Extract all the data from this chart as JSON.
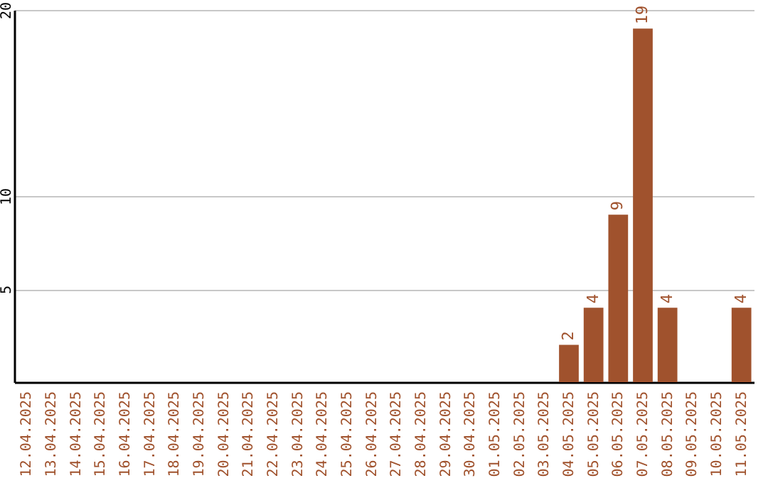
{
  "chart_data": {
    "type": "bar",
    "categories": [
      "12.04.2025",
      "13.04.2025",
      "14.04.2025",
      "15.04.2025",
      "16.04.2025",
      "17.04.2025",
      "18.04.2025",
      "19.04.2025",
      "20.04.2025",
      "21.04.2025",
      "22.04.2025",
      "23.04.2025",
      "24.04.2025",
      "25.04.2025",
      "26.04.2025",
      "27.04.2025",
      "28.04.2025",
      "29.04.2025",
      "30.04.2025",
      "01.05.2025",
      "02.05.2025",
      "03.05.2025",
      "04.05.2025",
      "05.05.2025",
      "06.05.2025",
      "07.05.2025",
      "08.05.2025",
      "09.05.2025",
      "10.05.2025",
      "11.05.2025"
    ],
    "values": [
      0,
      0,
      0,
      0,
      0,
      0,
      0,
      0,
      0,
      0,
      0,
      0,
      0,
      0,
      0,
      0,
      0,
      0,
      0,
      0,
      0,
      0,
      2,
      4,
      9,
      19,
      4,
      0,
      0,
      4
    ],
    "value_labels": [
      null,
      null,
      null,
      null,
      null,
      null,
      null,
      null,
      null,
      null,
      null,
      null,
      null,
      null,
      null,
      null,
      null,
      null,
      null,
      null,
      null,
      null,
      "2",
      "4",
      "9",
      "19",
      "4",
      null,
      null,
      "4"
    ],
    "color": "#a0522d",
    "ylim": [
      0,
      20
    ],
    "yticks": [
      5,
      10,
      20
    ],
    "grid": "y"
  }
}
